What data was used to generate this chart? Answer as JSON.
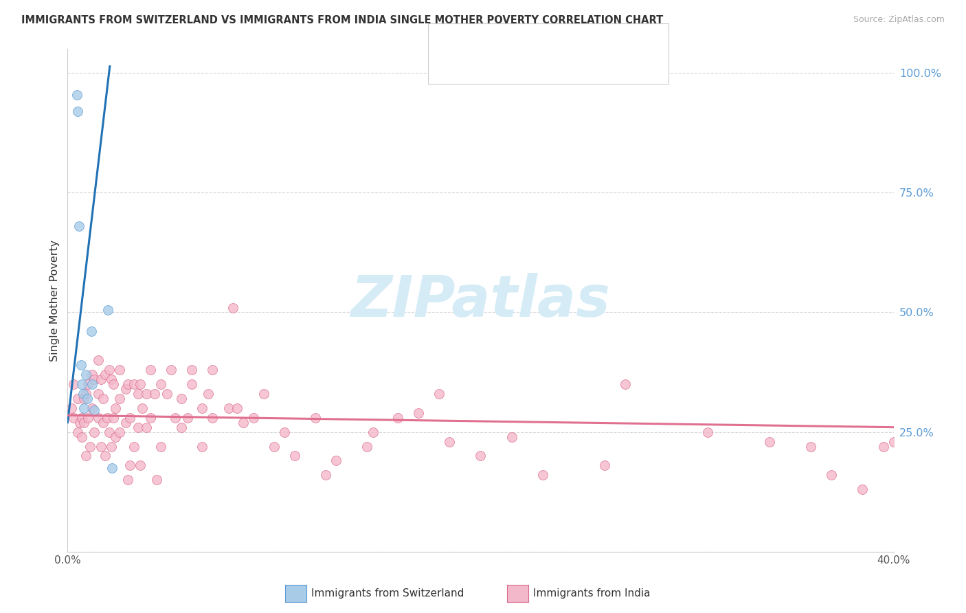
{
  "title": "IMMIGRANTS FROM SWITZERLAND VS IMMIGRANTS FROM INDIA SINGLE MOTHER POVERTY CORRELATION CHART",
  "source": "Source: ZipAtlas.com",
  "ylabel": "Single Mother Poverty",
  "xlim": [
    0.0,
    0.4
  ],
  "ylim": [
    0.0,
    1.05
  ],
  "yticks": [
    0.0,
    0.25,
    0.5,
    0.75,
    1.0
  ],
  "ytick_labels": [
    "",
    "25.0%",
    "50.0%",
    "75.0%",
    "100.0%"
  ],
  "xticks": [
    0.0,
    0.05,
    0.1,
    0.15,
    0.2,
    0.25,
    0.3,
    0.35,
    0.4
  ],
  "xtick_labels": [
    "0.0%",
    "",
    "",
    "",
    "",
    "",
    "",
    "",
    "40.0%"
  ],
  "blue_fill": "#a8cce8",
  "blue_edge": "#5b9bd5",
  "pink_fill": "#f4b8cb",
  "pink_edge": "#d96b8a",
  "blue_line_color": "#2171b5",
  "pink_line_color": "#e07090",
  "watermark": "ZIPatlas",
  "watermark_color": "#d5ecf7",
  "swiss_points_x": [
    0.0045,
    0.005,
    0.0055,
    0.0065,
    0.007,
    0.0075,
    0.008,
    0.009,
    0.0095,
    0.0115,
    0.012,
    0.013,
    0.0195,
    0.0215
  ],
  "swiss_points_y": [
    0.955,
    0.92,
    0.68,
    0.39,
    0.35,
    0.33,
    0.3,
    0.37,
    0.32,
    0.46,
    0.35,
    0.295,
    0.505,
    0.175
  ],
  "india_points_x": [
    0.002,
    0.003,
    0.003,
    0.005,
    0.005,
    0.006,
    0.007,
    0.007,
    0.008,
    0.008,
    0.009,
    0.009,
    0.01,
    0.01,
    0.011,
    0.012,
    0.012,
    0.013,
    0.013,
    0.015,
    0.015,
    0.015,
    0.016,
    0.016,
    0.017,
    0.017,
    0.018,
    0.018,
    0.019,
    0.02,
    0.02,
    0.021,
    0.021,
    0.022,
    0.022,
    0.023,
    0.023,
    0.025,
    0.025,
    0.025,
    0.028,
    0.028,
    0.029,
    0.029,
    0.03,
    0.03,
    0.032,
    0.032,
    0.034,
    0.034,
    0.035,
    0.035,
    0.036,
    0.038,
    0.038,
    0.04,
    0.04,
    0.042,
    0.043,
    0.045,
    0.045,
    0.048,
    0.05,
    0.052,
    0.055,
    0.055,
    0.058,
    0.06,
    0.06,
    0.065,
    0.065,
    0.068,
    0.07,
    0.07,
    0.078,
    0.08,
    0.082,
    0.085,
    0.09,
    0.095,
    0.1,
    0.105,
    0.11,
    0.12,
    0.125,
    0.13,
    0.145,
    0.148,
    0.16,
    0.17,
    0.18,
    0.185,
    0.2,
    0.215,
    0.23,
    0.26,
    0.27,
    0.31,
    0.34,
    0.36,
    0.37,
    0.385,
    0.395,
    0.4
  ],
  "india_points_y": [
    0.3,
    0.35,
    0.28,
    0.32,
    0.25,
    0.27,
    0.28,
    0.24,
    0.32,
    0.27,
    0.33,
    0.2,
    0.35,
    0.28,
    0.22,
    0.37,
    0.3,
    0.36,
    0.25,
    0.4,
    0.33,
    0.28,
    0.36,
    0.22,
    0.32,
    0.27,
    0.37,
    0.2,
    0.28,
    0.38,
    0.25,
    0.36,
    0.22,
    0.35,
    0.28,
    0.3,
    0.24,
    0.38,
    0.32,
    0.25,
    0.34,
    0.27,
    0.35,
    0.15,
    0.28,
    0.18,
    0.35,
    0.22,
    0.33,
    0.26,
    0.35,
    0.18,
    0.3,
    0.33,
    0.26,
    0.38,
    0.28,
    0.33,
    0.15,
    0.35,
    0.22,
    0.33,
    0.38,
    0.28,
    0.32,
    0.26,
    0.28,
    0.35,
    0.38,
    0.3,
    0.22,
    0.33,
    0.38,
    0.28,
    0.3,
    0.51,
    0.3,
    0.27,
    0.28,
    0.33,
    0.22,
    0.25,
    0.2,
    0.28,
    0.16,
    0.19,
    0.22,
    0.25,
    0.28,
    0.29,
    0.33,
    0.23,
    0.2,
    0.24,
    0.16,
    0.18,
    0.35,
    0.25,
    0.23,
    0.22,
    0.16,
    0.13,
    0.22,
    0.23
  ],
  "swiss_trend_x0": 0.0,
  "swiss_trend_y0": 0.27,
  "swiss_trend_x1": 0.014,
  "swiss_trend_y1": 0.78,
  "india_trend_x0": 0.0,
  "india_trend_y0": 0.285,
  "india_trend_x1": 0.4,
  "india_trend_y1": 0.26
}
